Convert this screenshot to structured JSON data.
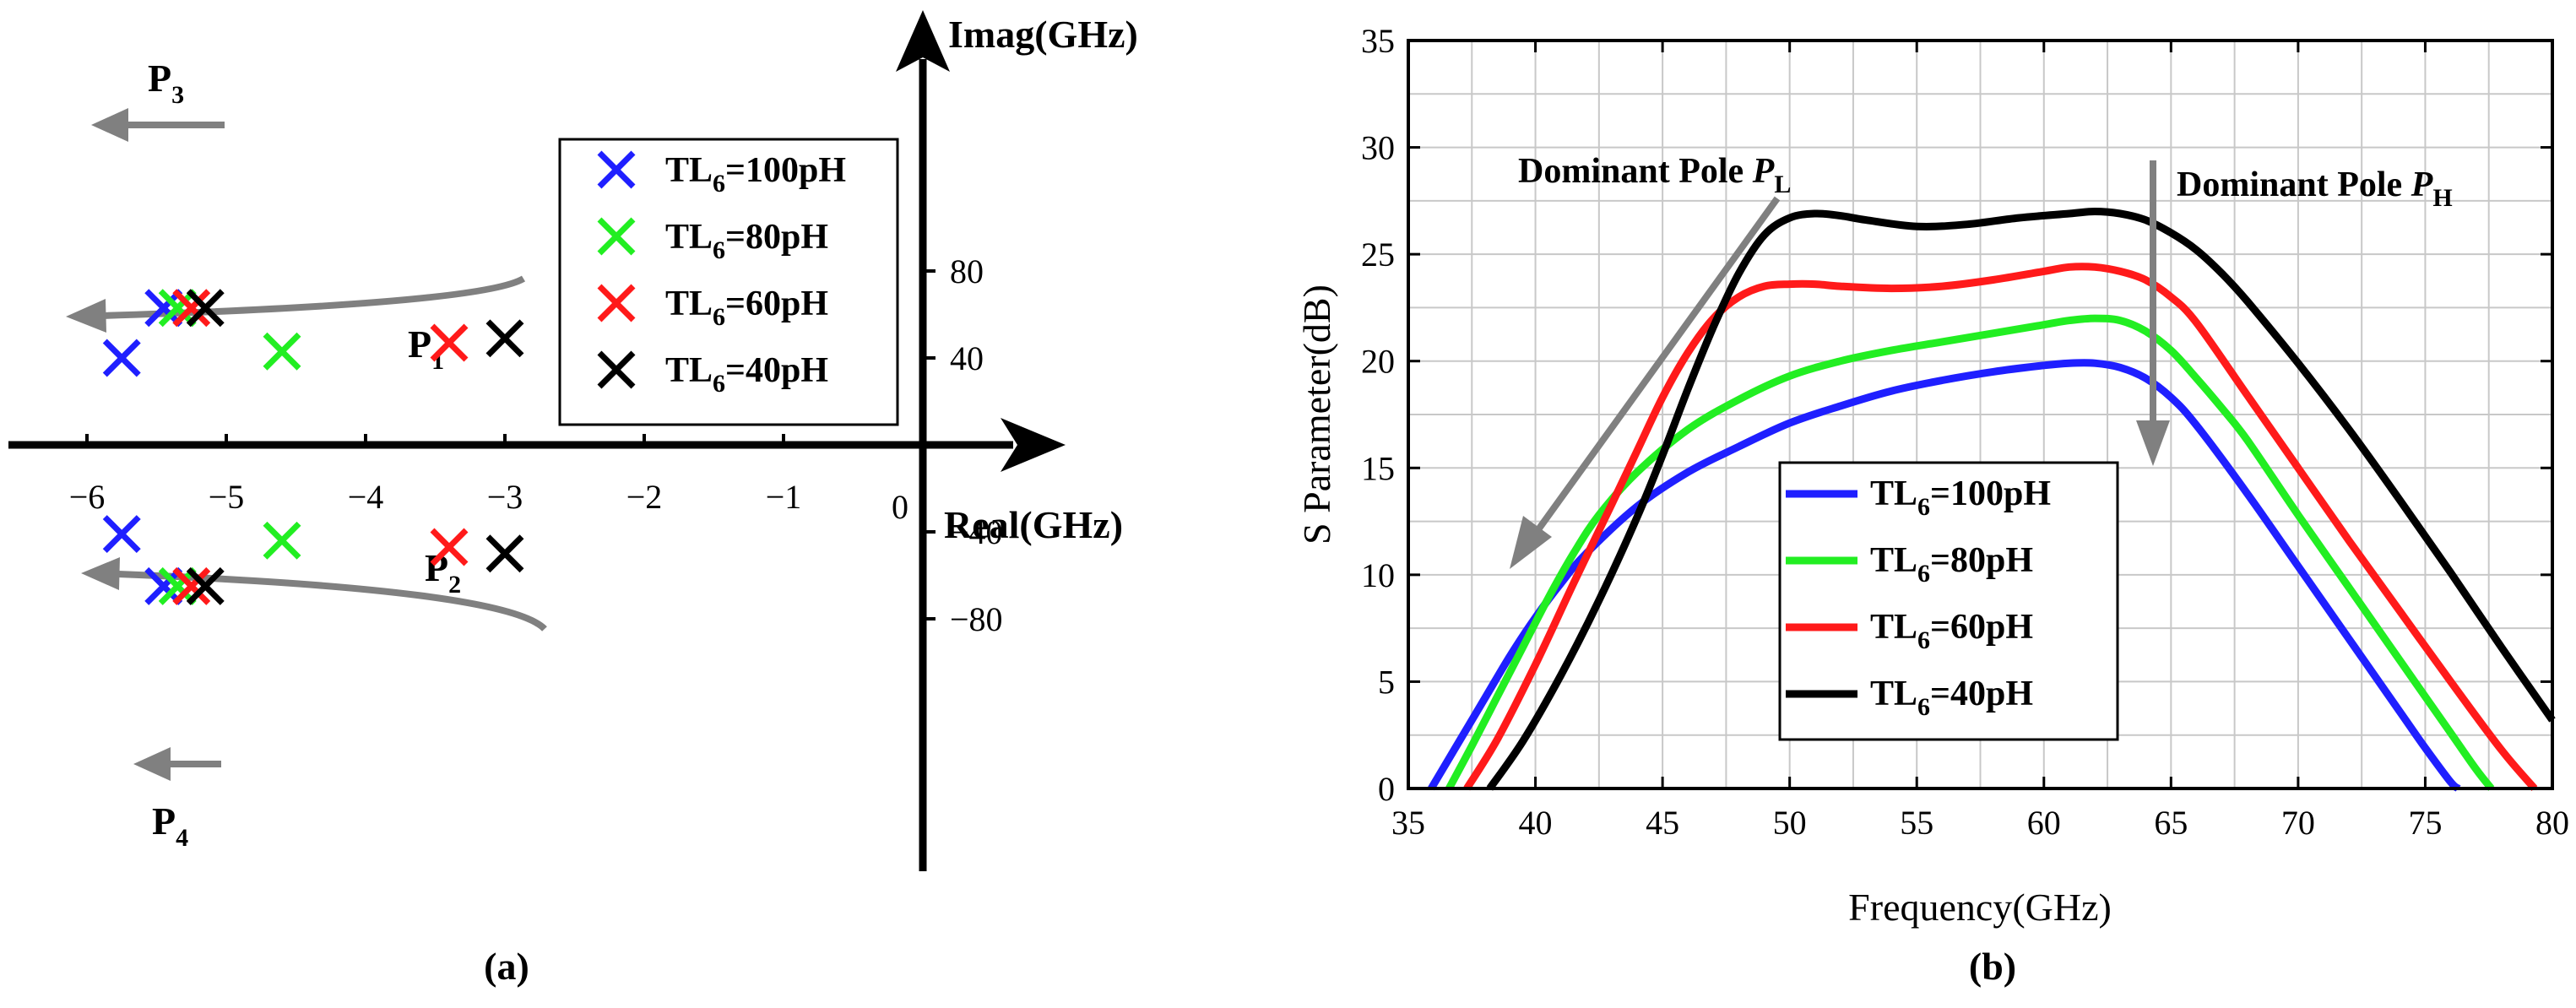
{
  "panel_a_label": "(a)",
  "panel_b_label": "(b)",
  "chart_data": [
    {
      "type": "scatter",
      "xlabel": "Real(GHz)",
      "ylabel": "Imag(GHz)",
      "xlim": [
        -6.5,
        1.2
      ],
      "ylim": [
        -100,
        100
      ],
      "x_ticks": [
        -6,
        -5,
        -4,
        -3,
        -2,
        -1,
        0
      ],
      "x_tick_labels": [
        "−6",
        "−5",
        "−4",
        "−3",
        "−2",
        "−1",
        "0"
      ],
      "y_ticks": [
        80,
        40,
        -40,
        -80
      ],
      "y_tick_labels": [
        "80",
        "40",
        "−40",
        "−80"
      ],
      "marker": "x",
      "legend": {
        "position": "upper-middle",
        "entries": [
          {
            "base": "TL",
            "sub": "6",
            "rest": "=100pH",
            "color": "#1f1fff"
          },
          {
            "base": "TL",
            "sub": "6",
            "rest": "=80pH",
            "color": "#22ee22"
          },
          {
            "base": "TL",
            "sub": "6",
            "rest": "=60pH",
            "color": "#ff1a1a"
          },
          {
            "base": "TL",
            "sub": "6",
            "rest": "=40pH",
            "color": "#000000"
          }
        ]
      },
      "series": [
        {
          "color": "#1f1fff",
          "x": [
            -5.75,
            -5.75,
            -5.45,
            -5.45
          ],
          "y": [
            40,
            -41,
            63,
            -65
          ]
        },
        {
          "color": "#22ee22",
          "x": [
            -4.6,
            -4.6,
            -5.35,
            -5.35
          ],
          "y": [
            43,
            -44,
            63,
            -65
          ]
        },
        {
          "color": "#ff1a1a",
          "x": [
            -3.4,
            -3.4,
            -5.25,
            -5.25
          ],
          "y": [
            47,
            -47,
            63,
            -65
          ]
        },
        {
          "color": "#000000",
          "x": [
            -3.0,
            -3.0,
            -5.15,
            -5.15
          ],
          "y": [
            49,
            -50,
            63,
            -65
          ]
        }
      ],
      "pole_labels": [
        {
          "base": "P",
          "sub": "1"
        },
        {
          "base": "P",
          "sub": "2"
        },
        {
          "base": "P",
          "sub": "3"
        },
        {
          "base": "P",
          "sub": "4"
        }
      ]
    },
    {
      "type": "line",
      "xlabel": "Frequency(GHz)",
      "ylabel": "S Parameter(dB)",
      "xlim": [
        35,
        80
      ],
      "ylim": [
        0,
        35
      ],
      "x_ticks": [
        35,
        40,
        45,
        50,
        55,
        60,
        65,
        70,
        75,
        80
      ],
      "y_ticks": [
        0,
        5,
        10,
        15,
        20,
        25,
        30,
        35
      ],
      "grid": true,
      "legend": {
        "position": "lower-middle",
        "entries": [
          {
            "base": "TL",
            "sub": "6",
            "rest": "=100pH",
            "color": "#1f1fff"
          },
          {
            "base": "TL",
            "sub": "6",
            "rest": "=80pH",
            "color": "#22ee22"
          },
          {
            "base": "TL",
            "sub": "6",
            "rest": "=60pH",
            "color": "#ff1a1a"
          },
          {
            "base": "TL",
            "sub": "6",
            "rest": "=40pH",
            "color": "#000000"
          }
        ]
      },
      "annotations": [
        {
          "text": "Dominant Pole ",
          "italic": "P",
          "sub": "L"
        },
        {
          "text": "Dominant Pole ",
          "italic": "P",
          "sub": "H"
        }
      ],
      "series": [
        {
          "color": "#1f1fff",
          "x": [
            35.9,
            37,
            38,
            39,
            40,
            41,
            42,
            44,
            46,
            48,
            50,
            52,
            54,
            56,
            58,
            60,
            61,
            62,
            63,
            64,
            65,
            66,
            68,
            70,
            72,
            74,
            75,
            76,
            76.3
          ],
          "y": [
            0,
            2.2,
            4.2,
            6.2,
            8,
            9.6,
            11,
            13.2,
            14.8,
            16,
            17.1,
            17.9,
            18.6,
            19.1,
            19.5,
            19.8,
            19.9,
            19.9,
            19.7,
            19.2,
            18.3,
            17,
            13.8,
            10.4,
            7,
            3.6,
            1.9,
            0.3,
            0
          ]
        },
        {
          "color": "#22ee22",
          "x": [
            36.6,
            37.5,
            38.5,
            39.5,
            40.5,
            41.5,
            42.5,
            44,
            46,
            48,
            50,
            52,
            54,
            56,
            58,
            60,
            61,
            62,
            63,
            64,
            65,
            66,
            67,
            68,
            70,
            72,
            74,
            76,
            77,
            77.6
          ],
          "y": [
            0,
            2,
            4.3,
            6.6,
            8.9,
            11,
            12.8,
            14.8,
            16.8,
            18.2,
            19.3,
            20,
            20.5,
            20.9,
            21.3,
            21.7,
            21.9,
            22,
            21.9,
            21.4,
            20.5,
            19.2,
            17.8,
            16.3,
            12.8,
            9.4,
            6,
            2.6,
            0.9,
            0
          ]
        },
        {
          "color": "#ff1a1a",
          "x": [
            37.3,
            38.5,
            40,
            41.5,
            43,
            44,
            45,
            46,
            47,
            48,
            49,
            50,
            51,
            52,
            54,
            56,
            58,
            60,
            61,
            62,
            63,
            64,
            65,
            66,
            68,
            70,
            72,
            74,
            76,
            78,
            79.3
          ],
          "y": [
            0,
            2.3,
            5.8,
            9.6,
            13.3,
            15.8,
            18.3,
            20.4,
            22,
            23,
            23.5,
            23.6,
            23.6,
            23.5,
            23.4,
            23.5,
            23.8,
            24.2,
            24.4,
            24.4,
            24.2,
            23.8,
            23,
            21.8,
            18.4,
            15,
            11.6,
            8.3,
            5,
            1.8,
            0
          ]
        },
        {
          "color": "#000000",
          "x": [
            38.2,
            39.5,
            41,
            42.5,
            44,
            45,
            46,
            47,
            48,
            49,
            50,
            51,
            52,
            53,
            55,
            57,
            59,
            61,
            62,
            63,
            64,
            65,
            66,
            67,
            68,
            70,
            72,
            74,
            76,
            78,
            80
          ],
          "y": [
            0,
            2.2,
            5.3,
            8.8,
            12.7,
            15.6,
            18.7,
            21.6,
            24.1,
            25.9,
            26.7,
            26.9,
            26.8,
            26.6,
            26.3,
            26.4,
            26.7,
            26.9,
            27,
            26.9,
            26.6,
            26,
            25.2,
            24.1,
            22.8,
            19.9,
            16.8,
            13.5,
            10.1,
            6.6,
            3.2
          ]
        }
      ]
    }
  ]
}
